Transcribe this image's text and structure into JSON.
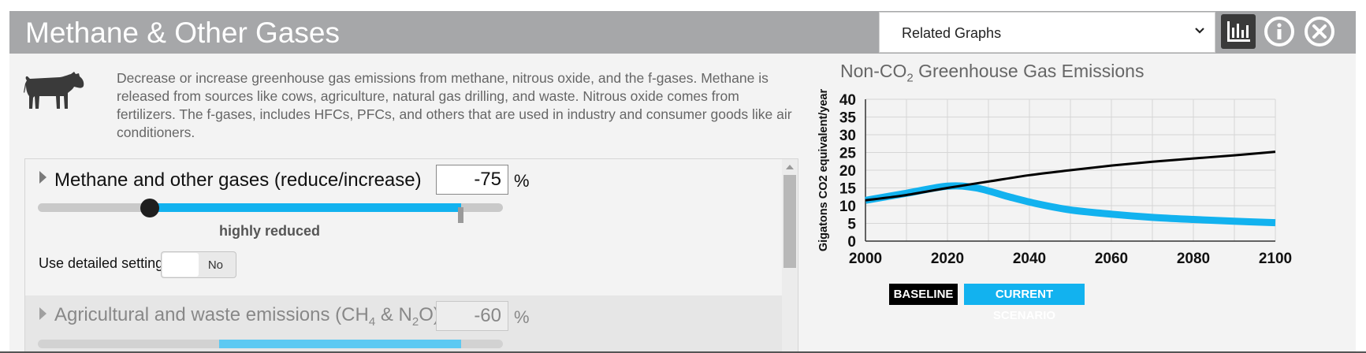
{
  "header": {
    "title": "Methane & Other Gases",
    "related_select": {
      "value": "Related Graphs"
    },
    "buttons": {
      "chart": "bar-chart-icon",
      "info": "info-icon",
      "close": "close-icon"
    }
  },
  "description": "Decrease or increase greenhouse gas emissions from methane, nitrous oxide, and the f-gases. Methane is released from sources like cows, agriculture, natural gas drilling, and waste. Nitrous oxide comes from fertilizers. The f-gases, includes HFCs, PFCs, and others that are used in industry and consumer goods like air conditioners.",
  "controls": {
    "main": {
      "label": "Methane and other gases (reduce/increase)",
      "value": "-75",
      "unit": "%",
      "state": "highly reduced",
      "slider_fraction": 0.24,
      "baseline_fraction": 0.91
    },
    "detailed": {
      "label": "Use detailed settings",
      "toggle": "No"
    },
    "sub": {
      "label_parts": [
        "Agricultural and waste emissions (CH",
        "4",
        " & N",
        "2",
        "O)"
      ],
      "value": "-60",
      "unit": "%",
      "slider_fraction": 0.39
    }
  },
  "colors": {
    "accent": "#12b2ef",
    "baseline": "#000000",
    "header": "#a6a7a9"
  },
  "chart_data": {
    "type": "line",
    "title_parts": [
      "Non-CO",
      "2",
      " Greenhouse Gas Emissions"
    ],
    "ylabel": "Gigatons CO2 equivalent/year",
    "xlim": [
      2000,
      2100
    ],
    "ylim": [
      0,
      40
    ],
    "x_ticks": [
      "2000",
      "2020",
      "2040",
      "2060",
      "2080",
      "2100"
    ],
    "y_ticks": [
      "0",
      "5",
      "10",
      "15",
      "20",
      "25",
      "30",
      "35",
      "40"
    ],
    "grid": true,
    "series": [
      {
        "name": "BASELINE",
        "color": "#000000",
        "points": [
          [
            2000,
            11.5
          ],
          [
            2010,
            13.0
          ],
          [
            2020,
            15.0
          ],
          [
            2030,
            16.8
          ],
          [
            2040,
            18.6
          ],
          [
            2050,
            20.0
          ],
          [
            2060,
            21.3
          ],
          [
            2070,
            22.4
          ],
          [
            2080,
            23.3
          ],
          [
            2090,
            24.2
          ],
          [
            2100,
            25.2
          ]
        ]
      },
      {
        "name": "CURRENT SCENARIO",
        "color": "#12b2ef",
        "points": [
          [
            2000,
            11.5
          ],
          [
            2010,
            13.5
          ],
          [
            2020,
            15.5
          ],
          [
            2027,
            15.0
          ],
          [
            2035,
            12.5
          ],
          [
            2042,
            10.5
          ],
          [
            2050,
            8.8
          ],
          [
            2060,
            7.6
          ],
          [
            2070,
            6.7
          ],
          [
            2080,
            6.1
          ],
          [
            2090,
            5.6
          ],
          [
            2100,
            5.2
          ]
        ]
      }
    ]
  }
}
